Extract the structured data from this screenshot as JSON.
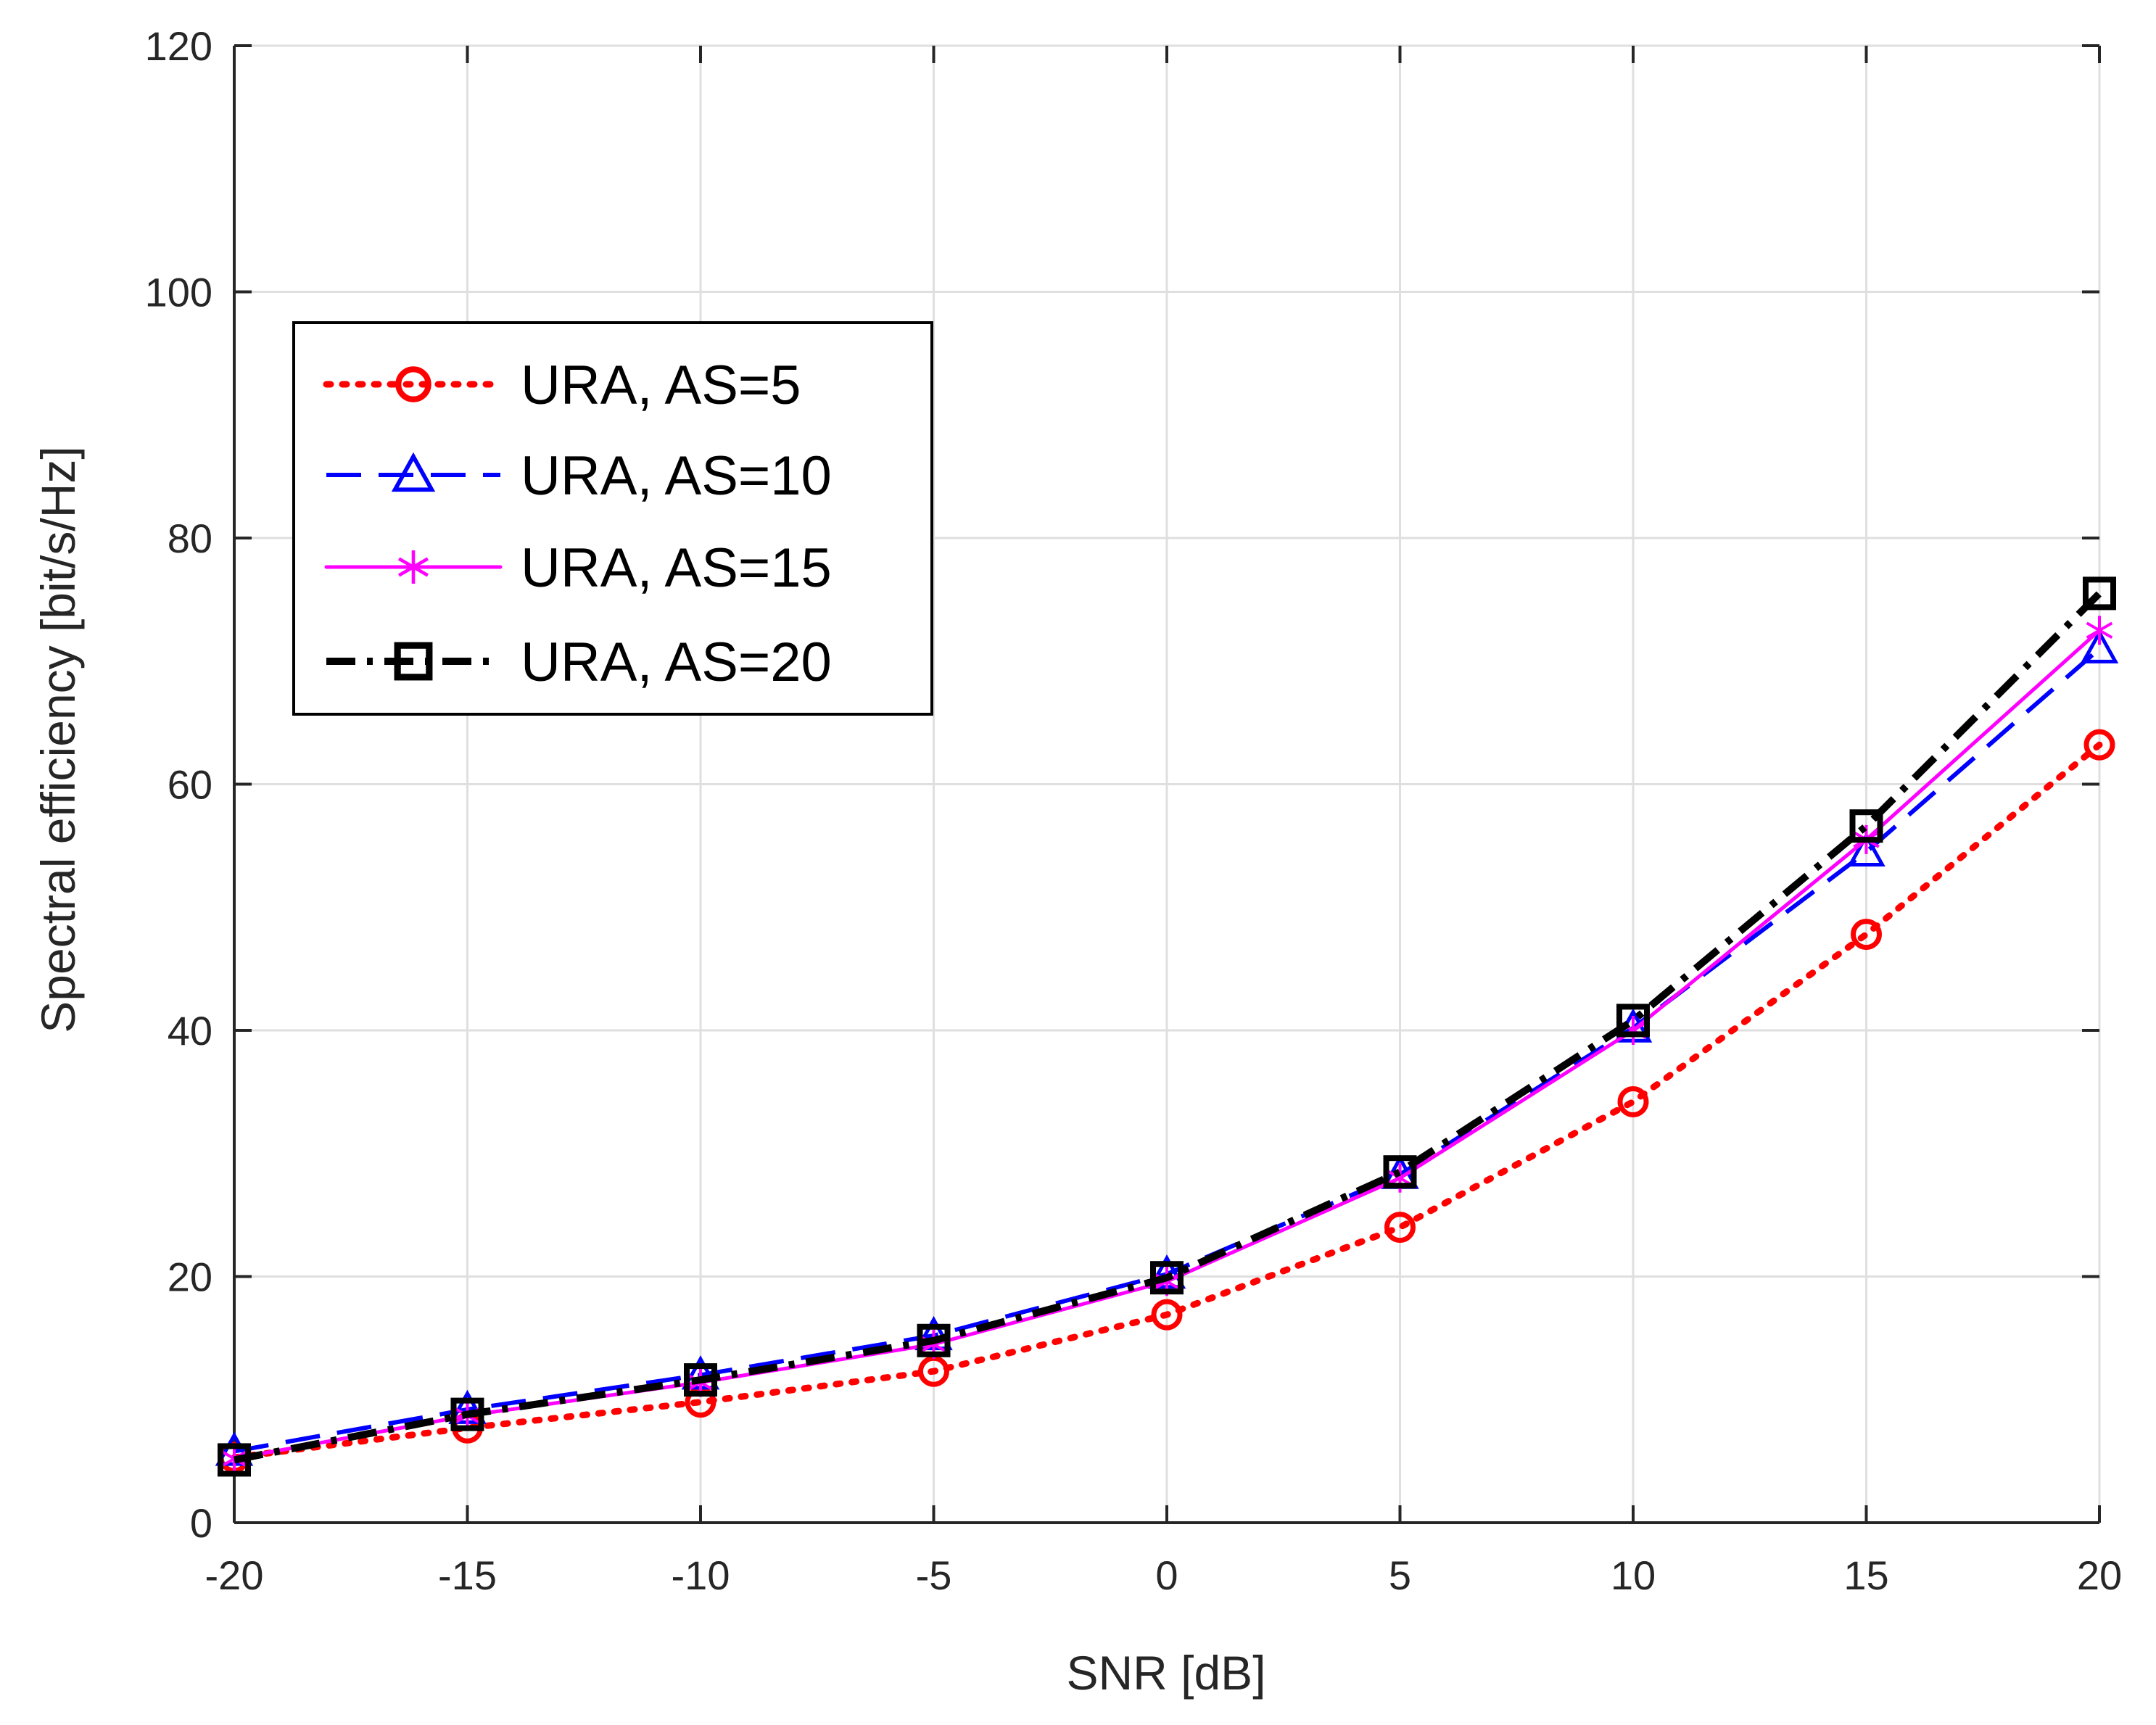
{
  "chart_data": {
    "type": "line",
    "title": "",
    "xlabel": "SNR [dB]",
    "ylabel": "Spectral efficiency [bit/s/Hz]",
    "xlim": [
      -20,
      20
    ],
    "ylim": [
      0,
      120
    ],
    "xticks": [
      -20,
      -15,
      -10,
      -5,
      0,
      5,
      10,
      15,
      20
    ],
    "xtick_labels": [
      "-20",
      "-15",
      "-10",
      "-5",
      "0",
      "5",
      "10",
      "15",
      "20"
    ],
    "yticks": [
      0,
      20,
      40,
      60,
      80,
      100,
      120
    ],
    "ytick_labels": [
      "0",
      "20",
      "40",
      "60",
      "80",
      "100",
      "120"
    ],
    "grid": true,
    "legend_position": "upper-left",
    "x": [
      -20,
      -15,
      -10,
      -5,
      0,
      5,
      10,
      15,
      20
    ],
    "series": [
      {
        "name": "URA, AS=5",
        "color": "#ff0000",
        "line": "dotted",
        "marker": "circle",
        "values": [
          5.3,
          7.7,
          9.8,
          12.3,
          16.9,
          24.0,
          34.2,
          47.8,
          63.2
        ]
      },
      {
        "name": "URA, AS=10",
        "color": "#0000ff",
        "line": "dashed",
        "marker": "triangle",
        "values": [
          5.8,
          9.2,
          12.0,
          15.2,
          20.2,
          28.3,
          40.2,
          54.5,
          71.0
        ]
      },
      {
        "name": "URA, AS=15",
        "color": "#ff00ff",
        "line": "solid",
        "marker": "asterisk",
        "values": [
          5.2,
          8.7,
          11.4,
          14.5,
          19.6,
          28.0,
          40.0,
          55.5,
          72.5
        ]
      },
      {
        "name": "URA, AS=20",
        "color": "#000000",
        "line": "dashdot",
        "marker": "square",
        "values": [
          5.1,
          8.8,
          11.6,
          14.8,
          19.9,
          28.5,
          40.8,
          56.6,
          75.5
        ]
      }
    ]
  }
}
